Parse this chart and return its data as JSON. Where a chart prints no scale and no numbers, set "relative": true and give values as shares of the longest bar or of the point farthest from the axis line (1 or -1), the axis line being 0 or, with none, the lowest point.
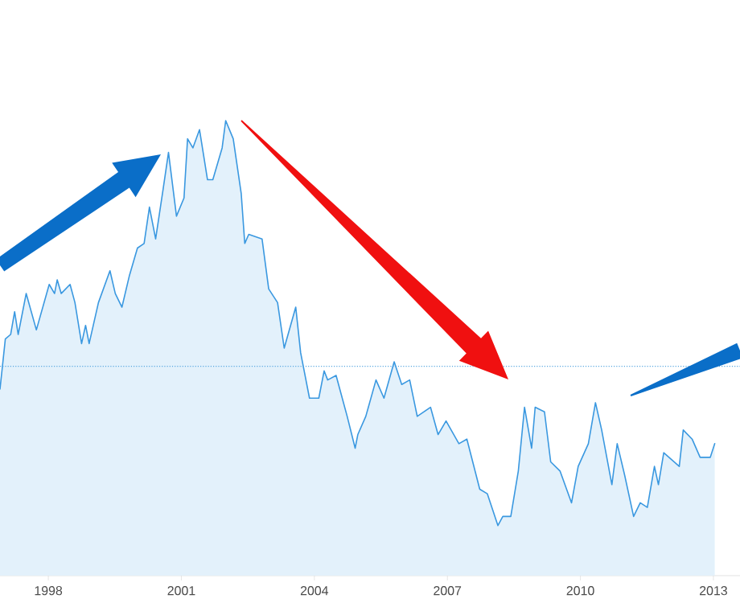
{
  "chart_data": {
    "type": "area",
    "relative": true,
    "color": "#3a98e0",
    "x": [
      1996.91,
      1997.03,
      1997.15,
      1997.24,
      1997.32,
      1997.5,
      1997.73,
      1998.02,
      1998.14,
      1998.2,
      1998.29,
      1998.49,
      1998.6,
      1998.75,
      1998.84,
      1998.92,
      1999.13,
      1999.39,
      1999.51,
      1999.66,
      1999.83,
      2000.01,
      2000.16,
      2000.28,
      2000.42,
      2000.59,
      2000.71,
      2000.89,
      2001.06,
      2001.14,
      2001.26,
      2001.41,
      2001.59,
      2001.71,
      2001.92,
      2002.0,
      2002.17,
      2002.35,
      2002.43,
      2002.52,
      2002.82,
      2002.97,
      2003.17,
      2003.32,
      2003.58,
      2003.69,
      2003.89,
      2004.1,
      2004.22,
      2004.3,
      2004.49,
      2004.74,
      2004.92,
      2004.98,
      2005.16,
      2005.39,
      2005.57,
      2005.8,
      2005.97,
      2006.15,
      2006.32,
      2006.62,
      2006.79,
      2006.97,
      2007.26,
      2007.44,
      2007.73,
      2007.9,
      2008.14,
      2008.25,
      2008.43,
      2008.6,
      2008.74,
      2008.9,
      2008.98,
      2009.19,
      2009.33,
      2009.54,
      2009.8,
      2009.95,
      2010.18,
      2010.34,
      2010.48,
      2010.71,
      2010.83,
      2011.0,
      2011.2,
      2011.35,
      2011.51,
      2011.67,
      2011.76,
      2011.88,
      2012.23,
      2012.32,
      2012.52,
      2012.7,
      2012.93,
      2013.03
    ],
    "values": [
      0.41,
      0.52,
      0.53,
      0.58,
      0.53,
      0.62,
      0.54,
      0.64,
      0.62,
      0.65,
      0.62,
      0.64,
      0.6,
      0.51,
      0.55,
      0.51,
      0.6,
      0.67,
      0.62,
      0.59,
      0.66,
      0.72,
      0.73,
      0.81,
      0.74,
      0.85,
      0.93,
      0.79,
      0.83,
      0.96,
      0.94,
      0.98,
      0.87,
      0.87,
      0.94,
      1,
      0.96,
      0.84,
      0.73,
      0.75,
      0.74,
      0.63,
      0.6,
      0.5,
      0.59,
      0.49,
      0.39,
      0.39,
      0.45,
      0.43,
      0.44,
      0.35,
      0.28,
      0.31,
      0.35,
      0.43,
      0.39,
      0.47,
      0.42,
      0.43,
      0.35,
      0.37,
      0.31,
      0.34,
      0.29,
      0.3,
      0.19,
      0.18,
      0.11,
      0.13,
      0.13,
      0.23,
      0.37,
      0.28,
      0.37,
      0.36,
      0.25,
      0.23,
      0.16,
      0.24,
      0.29,
      0.38,
      0.32,
      0.2,
      0.29,
      0.22,
      0.13,
      0.16,
      0.15,
      0.24,
      0.2,
      0.27,
      0.24,
      0.32,
      0.3,
      0.26,
      0.26,
      0.29
    ],
    "xlim": [
      1996.91,
      2013.6
    ],
    "xticks": [
      1998,
      2001,
      2004,
      2007,
      2010,
      2013
    ],
    "tick_labels": "x",
    "marker": "none",
    "line_style": "solid",
    "ref_lines": [
      {
        "axis": "y",
        "value": 0.46,
        "color": "#5aa8e0",
        "line_style": "dotted"
      }
    ]
  }
}
